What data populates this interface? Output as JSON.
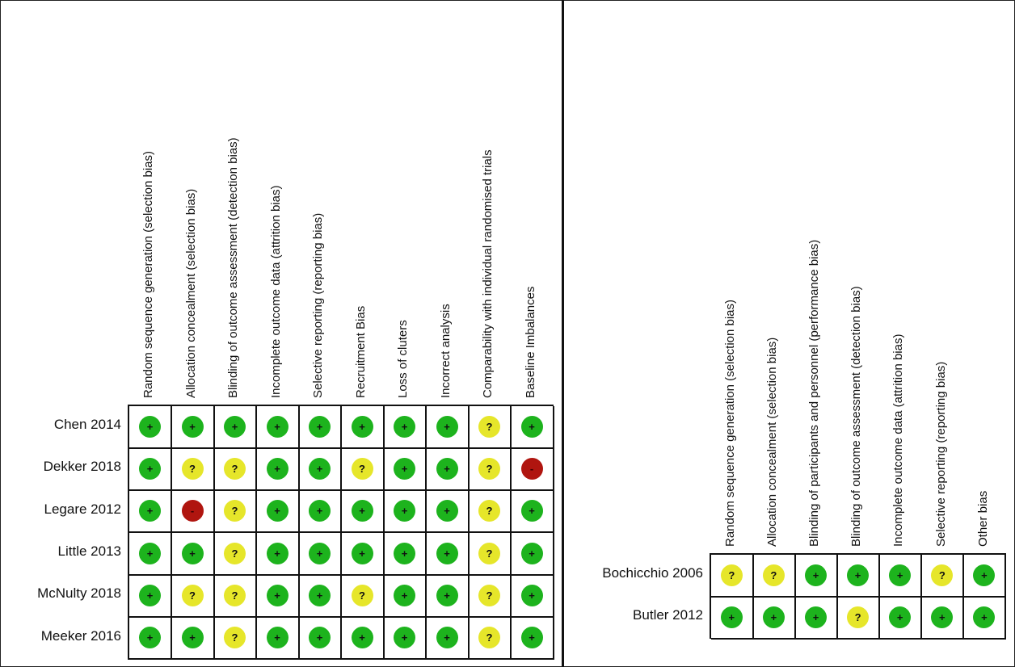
{
  "colors": {
    "low": "#1db31d",
    "unclear": "#e6e62a",
    "high": "#b0150f"
  },
  "legend_symbols": {
    "low": "+",
    "unclear": "?",
    "high": "-"
  },
  "panels": [
    {
      "columns": [
        "Random sequence generation (selection bias)",
        "Allocation concealment (selection bias)",
        "Blinding of outcome assessment (detection bias)",
        "Incomplete outcome data (attrition bias)",
        "Selective reporting (reporting bias)",
        "Recruitment Bias",
        "Loss of cluters",
        "Incorrect analysis",
        "Comparability with individual randomised trials",
        "Baseline Imbalances"
      ],
      "rows": [
        {
          "study": "Chen 2014",
          "ratings": [
            "low",
            "low",
            "low",
            "low",
            "low",
            "low",
            "low",
            "low",
            "unclear",
            "low"
          ]
        },
        {
          "study": "Dekker 2018",
          "ratings": [
            "low",
            "unclear",
            "unclear",
            "low",
            "low",
            "unclear",
            "low",
            "low",
            "unclear",
            "high"
          ]
        },
        {
          "study": "Legare 2012",
          "ratings": [
            "low",
            "high",
            "unclear",
            "low",
            "low",
            "low",
            "low",
            "low",
            "unclear",
            "low"
          ]
        },
        {
          "study": "Little 2013",
          "ratings": [
            "low",
            "low",
            "unclear",
            "low",
            "low",
            "low",
            "low",
            "low",
            "unclear",
            "low"
          ]
        },
        {
          "study": "McNulty 2018",
          "ratings": [
            "low",
            "unclear",
            "unclear",
            "low",
            "low",
            "unclear",
            "low",
            "low",
            "unclear",
            "low"
          ]
        },
        {
          "study": "Meeker 2016",
          "ratings": [
            "low",
            "low",
            "unclear",
            "low",
            "low",
            "low",
            "low",
            "low",
            "unclear",
            "low"
          ]
        }
      ]
    },
    {
      "columns": [
        "Random sequence generation (selection bias)",
        "Allocation concealment (selection bias)",
        "Blinding of participants and personnel (performance bias)",
        "Blinding of outcome assessment (detection bias)",
        "Incomplete outcome data (attrition bias)",
        "Selective reporting (reporting bias)",
        "Other bias"
      ],
      "rows": [
        {
          "study": "Bochicchio 2006",
          "ratings": [
            "unclear",
            "unclear",
            "low",
            "low",
            "low",
            "unclear",
            "low"
          ]
        },
        {
          "study": "Butler 2012",
          "ratings": [
            "low",
            "low",
            "low",
            "unclear",
            "low",
            "low",
            "low"
          ]
        }
      ]
    }
  ]
}
